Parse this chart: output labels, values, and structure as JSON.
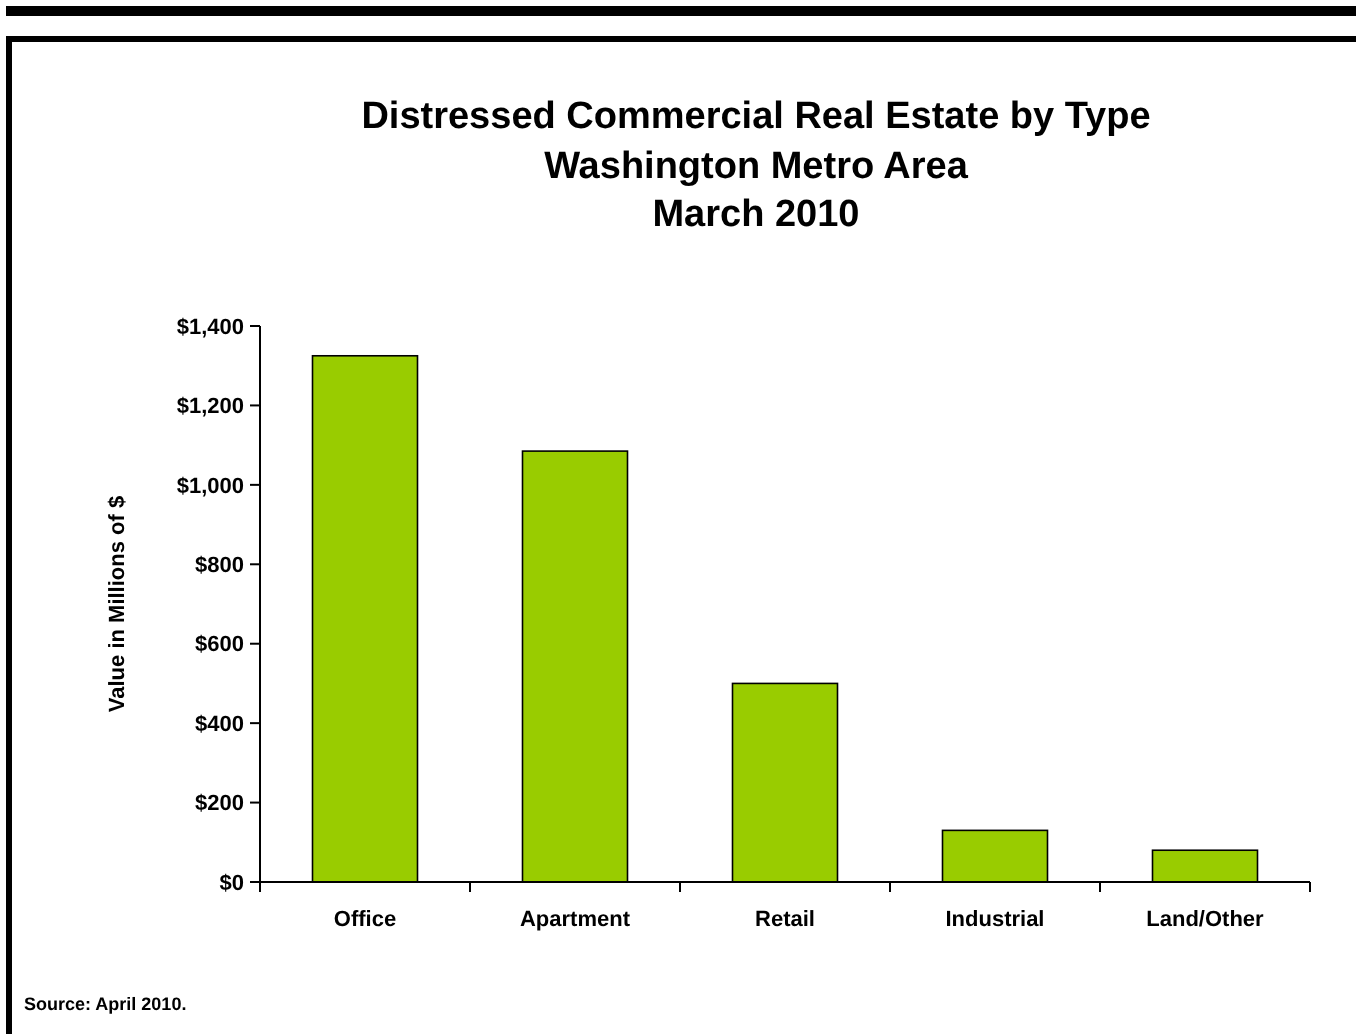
{
  "chart_data": {
    "type": "bar",
    "title": "Distressed Commercial Real Estate by Type",
    "subtitle": "Washington Metro Area\nMarch 2010",
    "ylabel": "Value in Millions of $",
    "categories": [
      "Office",
      "Apartment",
      "Retail",
      "Industrial",
      "Land/Other"
    ],
    "values": [
      1325,
      1085,
      500,
      130,
      80
    ],
    "color": "#99cc00",
    "ylim": [
      0,
      1400
    ],
    "yticks": [
      {
        "value": 0,
        "label": "$0"
      },
      {
        "value": 200,
        "label": "$200"
      },
      {
        "value": 400,
        "label": "$400"
      },
      {
        "value": 600,
        "label": "$600"
      },
      {
        "value": 800,
        "label": "$800"
      },
      {
        "value": 1000,
        "label": "$1,000"
      },
      {
        "value": 1200,
        "label": "$1,200"
      },
      {
        "value": 1400,
        "label": "$1,400"
      }
    ],
    "grid": false,
    "annotations": [
      "Source: April 2010."
    ]
  }
}
